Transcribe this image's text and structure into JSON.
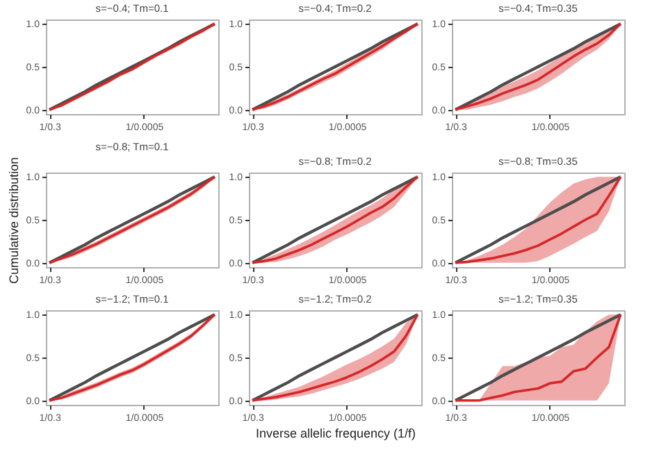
{
  "chart_data": [
    {
      "type": "line",
      "title": "s=−0.4; Tm=0.1",
      "categories": [
        "1/0.3",
        null,
        null,
        null,
        null,
        null,
        null,
        null,
        "1/0.0005",
        null,
        null,
        null,
        null,
        null,
        null
      ],
      "ylim": [
        -0.05,
        1.05
      ],
      "yticks": [
        {
          "value": 0,
          "label": "0.0"
        },
        {
          "value": 0.5,
          "label": "0.5"
        },
        {
          "value": 1,
          "label": "1.0"
        }
      ],
      "series": [
        {
          "color": "#4d4d4d",
          "values": [
            0,
            0.07,
            0.14,
            0.21,
            0.29,
            0.36,
            0.43,
            0.5,
            0.57,
            0.64,
            0.71,
            0.79,
            0.86,
            0.93,
            1
          ]
        },
        {
          "color": "#d62728",
          "values": [
            0,
            0.05,
            0.12,
            0.19,
            0.26,
            0.33,
            0.41,
            0.47,
            0.55,
            0.63,
            0.7,
            0.77,
            0.85,
            0.92,
            1
          ],
          "lower": [
            0,
            0.03,
            0.1,
            0.17,
            0.24,
            0.31,
            0.39,
            0.45,
            0.53,
            0.61,
            0.68,
            0.75,
            0.83,
            0.9,
            1
          ],
          "upper": [
            0,
            0.06,
            0.13,
            0.2,
            0.28,
            0.35,
            0.42,
            0.49,
            0.57,
            0.64,
            0.71,
            0.79,
            0.86,
            0.93,
            1
          ]
        }
      ]
    },
    {
      "type": "line",
      "title": "s=−0.4; Tm=0.2",
      "categories": [
        "1/0.3",
        null,
        null,
        null,
        null,
        null,
        null,
        null,
        "1/0.0005",
        null,
        null,
        null,
        null,
        null,
        null
      ],
      "ylim": [
        -0.05,
        1.05
      ],
      "yticks": [
        {
          "value": 0,
          "label": "0.0"
        },
        {
          "value": 0.5,
          "label": "0.5"
        },
        {
          "value": 1,
          "label": "1.0"
        }
      ],
      "series": [
        {
          "color": "#4d4d4d",
          "values": [
            0,
            0.07,
            0.14,
            0.21,
            0.29,
            0.36,
            0.43,
            0.5,
            0.57,
            0.64,
            0.71,
            0.79,
            0.86,
            0.93,
            1
          ]
        },
        {
          "color": "#d62728",
          "values": [
            0,
            0.04,
            0.09,
            0.15,
            0.22,
            0.29,
            0.36,
            0.42,
            0.5,
            0.58,
            0.66,
            0.74,
            0.83,
            0.91,
            1
          ],
          "lower": [
            0,
            0.01,
            0.06,
            0.12,
            0.19,
            0.25,
            0.32,
            0.38,
            0.46,
            0.54,
            0.62,
            0.7,
            0.8,
            0.89,
            1
          ],
          "upper": [
            0,
            0.07,
            0.12,
            0.18,
            0.25,
            0.32,
            0.39,
            0.46,
            0.54,
            0.62,
            0.69,
            0.77,
            0.86,
            0.93,
            1
          ]
        }
      ]
    },
    {
      "type": "line",
      "title": "s=−0.4; Tm=0.35",
      "categories": [
        "1/0.3",
        null,
        null,
        null,
        null,
        null,
        null,
        null,
        "1/0.0005",
        null,
        null,
        null,
        null,
        null,
        null
      ],
      "ylim": [
        -0.05,
        1.05
      ],
      "yticks": [
        {
          "value": 0,
          "label": "0.0"
        },
        {
          "value": 0.5,
          "label": "0.5"
        },
        {
          "value": 1,
          "label": "1.0"
        }
      ],
      "series": [
        {
          "color": "#4d4d4d",
          "values": [
            0,
            0.07,
            0.14,
            0.21,
            0.29,
            0.36,
            0.43,
            0.5,
            0.57,
            0.64,
            0.71,
            0.79,
            0.86,
            0.93,
            1
          ]
        },
        {
          "color": "#d62728",
          "values": [
            0,
            0.04,
            0.08,
            0.13,
            0.19,
            0.24,
            0.29,
            0.35,
            0.44,
            0.53,
            0.62,
            0.7,
            0.77,
            0.87,
            1
          ],
          "lower": [
            0,
            0,
            0.03,
            0.06,
            0.1,
            0.15,
            0.19,
            0.25,
            0.33,
            0.42,
            0.52,
            0.62,
            0.7,
            0.82,
            1
          ],
          "upper": [
            0,
            0.07,
            0.13,
            0.2,
            0.27,
            0.33,
            0.39,
            0.46,
            0.54,
            0.63,
            0.71,
            0.79,
            0.86,
            0.94,
            1
          ]
        }
      ]
    },
    {
      "type": "line",
      "title": "s=−0.8; Tm=0.1",
      "ylabel": "Cumulative distribution",
      "categories": [
        "1/0.3",
        null,
        null,
        null,
        null,
        null,
        null,
        null,
        "1/0.0005",
        null,
        null,
        null,
        null,
        null,
        null
      ],
      "ylim": [
        -0.05,
        1.05
      ],
      "yticks": [
        {
          "value": 0,
          "label": "0.0"
        },
        {
          "value": 0.5,
          "label": "0.5"
        },
        {
          "value": 1,
          "label": "1.0"
        }
      ],
      "series": [
        {
          "color": "#4d4d4d",
          "values": [
            0,
            0.07,
            0.14,
            0.21,
            0.29,
            0.36,
            0.43,
            0.5,
            0.57,
            0.64,
            0.71,
            0.79,
            0.86,
            0.93,
            1
          ]
        },
        {
          "color": "#d62728",
          "values": [
            0,
            0.05,
            0.1,
            0.16,
            0.22,
            0.29,
            0.36,
            0.43,
            0.5,
            0.57,
            0.64,
            0.72,
            0.8,
            0.9,
            1
          ],
          "lower": [
            0,
            0.03,
            0.07,
            0.13,
            0.19,
            0.26,
            0.33,
            0.4,
            0.47,
            0.54,
            0.61,
            0.69,
            0.77,
            0.87,
            1
          ],
          "upper": [
            0,
            0.07,
            0.13,
            0.19,
            0.25,
            0.32,
            0.39,
            0.46,
            0.53,
            0.6,
            0.67,
            0.75,
            0.83,
            0.92,
            1
          ]
        }
      ]
    },
    {
      "type": "line",
      "title": "s=−0.8; Tm=0.2",
      "categories": [
        "1/0.3",
        null,
        null,
        null,
        null,
        null,
        null,
        null,
        "1/0.0005",
        null,
        null,
        null,
        null,
        null,
        null
      ],
      "ylim": [
        -0.05,
        1.05
      ],
      "yticks": [
        {
          "value": 0,
          "label": "0.0"
        },
        {
          "value": 0.5,
          "label": "0.5"
        },
        {
          "value": 1,
          "label": "1.0"
        }
      ],
      "series": [
        {
          "color": "#4d4d4d",
          "values": [
            0,
            0.07,
            0.14,
            0.21,
            0.29,
            0.36,
            0.43,
            0.5,
            0.57,
            0.64,
            0.71,
            0.79,
            0.86,
            0.93,
            1
          ]
        },
        {
          "color": "#d62728",
          "values": [
            0,
            0.02,
            0.05,
            0.1,
            0.15,
            0.21,
            0.28,
            0.35,
            0.42,
            0.5,
            0.58,
            0.65,
            0.75,
            0.88,
            1
          ],
          "lower": [
            0,
            0,
            0.01,
            0.04,
            0.08,
            0.13,
            0.19,
            0.27,
            0.33,
            0.4,
            0.47,
            0.55,
            0.65,
            0.82,
            1
          ],
          "upper": [
            0,
            0.05,
            0.1,
            0.16,
            0.22,
            0.29,
            0.36,
            0.44,
            0.52,
            0.6,
            0.67,
            0.75,
            0.85,
            0.95,
            1
          ]
        }
      ]
    },
    {
      "type": "line",
      "title": "s=−0.8; Tm=0.35",
      "categories": [
        "1/0.3",
        null,
        null,
        null,
        null,
        null,
        null,
        null,
        "1/0.0005",
        null,
        null,
        null,
        null,
        null,
        null
      ],
      "ylim": [
        -0.05,
        1.05
      ],
      "yticks": [
        {
          "value": 0,
          "label": "0.0"
        },
        {
          "value": 0.5,
          "label": "0.5"
        },
        {
          "value": 1,
          "label": "1.0"
        }
      ],
      "series": [
        {
          "color": "#4d4d4d",
          "values": [
            0,
            0.07,
            0.14,
            0.21,
            0.29,
            0.36,
            0.43,
            0.5,
            0.57,
            0.64,
            0.71,
            0.79,
            0.86,
            0.93,
            1
          ]
        },
        {
          "color": "#d62728",
          "values": [
            0,
            0.01,
            0.03,
            0.05,
            0.08,
            0.11,
            0.15,
            0.2,
            0.27,
            0.34,
            0.42,
            0.5,
            0.57,
            0.78,
            1
          ],
          "lower": [
            0,
            0,
            0,
            0,
            0,
            0,
            0,
            0.02,
            0.08,
            0.15,
            0.22,
            0.3,
            0.37,
            0.6,
            1
          ],
          "upper": [
            0,
            0.03,
            0.08,
            0.14,
            0.21,
            0.3,
            0.4,
            0.55,
            0.7,
            0.82,
            0.92,
            0.97,
            1,
            1,
            1
          ]
        }
      ]
    },
    {
      "type": "line",
      "title": "s=−1.2; Tm=0.1",
      "categories": [
        "1/0.3",
        null,
        null,
        null,
        null,
        null,
        null,
        null,
        "1/0.0005",
        null,
        null,
        null,
        null,
        null,
        null
      ],
      "ylim": [
        -0.05,
        1.05
      ],
      "yticks": [
        {
          "value": 0,
          "label": "0.0"
        },
        {
          "value": 0.5,
          "label": "0.5"
        },
        {
          "value": 1,
          "label": "1.0"
        }
      ],
      "series": [
        {
          "color": "#4d4d4d",
          "values": [
            0,
            0.07,
            0.14,
            0.21,
            0.29,
            0.36,
            0.43,
            0.5,
            0.57,
            0.64,
            0.71,
            0.79,
            0.86,
            0.93,
            1
          ]
        },
        {
          "color": "#d62728",
          "values": [
            0,
            0.03,
            0.08,
            0.13,
            0.18,
            0.24,
            0.3,
            0.35,
            0.42,
            0.5,
            0.58,
            0.66,
            0.75,
            0.87,
            1
          ],
          "lower": [
            0,
            0.01,
            0.05,
            0.1,
            0.15,
            0.21,
            0.27,
            0.32,
            0.39,
            0.47,
            0.55,
            0.63,
            0.72,
            0.85,
            1
          ],
          "upper": [
            0,
            0.05,
            0.11,
            0.16,
            0.21,
            0.27,
            0.33,
            0.38,
            0.45,
            0.53,
            0.61,
            0.69,
            0.78,
            0.9,
            1
          ]
        }
      ]
    },
    {
      "type": "line",
      "title": "s=−1.2; Tm=0.2",
      "xlabel": "Inverse allelic frequency (1/f)",
      "categories": [
        "1/0.3",
        null,
        null,
        null,
        null,
        null,
        null,
        null,
        "1/0.0005",
        null,
        null,
        null,
        null,
        null,
        null
      ],
      "ylim": [
        -0.05,
        1.05
      ],
      "yticks": [
        {
          "value": 0,
          "label": "0.0"
        },
        {
          "value": 0.5,
          "label": "0.5"
        },
        {
          "value": 1,
          "label": "1.0"
        }
      ],
      "series": [
        {
          "color": "#4d4d4d",
          "values": [
            0,
            0.07,
            0.14,
            0.21,
            0.29,
            0.36,
            0.43,
            0.5,
            0.57,
            0.64,
            0.71,
            0.79,
            0.86,
            0.93,
            1
          ]
        },
        {
          "color": "#d62728",
          "values": [
            0,
            0.02,
            0.04,
            0.07,
            0.1,
            0.14,
            0.18,
            0.22,
            0.27,
            0.33,
            0.4,
            0.48,
            0.57,
            0.75,
            1
          ],
          "lower": [
            0,
            0,
            0.01,
            0.03,
            0.05,
            0.08,
            0.12,
            0.16,
            0.2,
            0.25,
            0.31,
            0.37,
            0.45,
            0.65,
            1
          ],
          "upper": [
            0,
            0.04,
            0.08,
            0.12,
            0.16,
            0.22,
            0.28,
            0.35,
            0.42,
            0.48,
            0.55,
            0.63,
            0.72,
            0.9,
            1
          ]
        }
      ]
    },
    {
      "type": "line",
      "title": "s=−1.2; Tm=0.35",
      "categories": [
        "1/0.3",
        null,
        null,
        null,
        null,
        null,
        null,
        null,
        "1/0.0005",
        null,
        null,
        null,
        null,
        null,
        null
      ],
      "ylim": [
        -0.05,
        1.05
      ],
      "yticks": [
        {
          "value": 0,
          "label": "0.0"
        },
        {
          "value": 0.5,
          "label": "0.5"
        },
        {
          "value": 1,
          "label": "1.0"
        }
      ],
      "series": [
        {
          "color": "#4d4d4d",
          "values": [
            0,
            0.07,
            0.14,
            0.21,
            0.29,
            0.36,
            0.43,
            0.5,
            0.57,
            0.64,
            0.71,
            0.79,
            0.86,
            0.93,
            1
          ]
        },
        {
          "color": "#d62728",
          "values": [
            0,
            0,
            0,
            0.03,
            0.06,
            0.1,
            0.12,
            0.14,
            0.2,
            0.22,
            0.34,
            0.37,
            0.5,
            0.62,
            1
          ],
          "lower": [
            0,
            0,
            0,
            0,
            0,
            0,
            0,
            0,
            0,
            0,
            0,
            0,
            0,
            0.2,
            1
          ],
          "upper": [
            0,
            0,
            0,
            0.2,
            0.4,
            0.4,
            0.45,
            0.5,
            0.52,
            0.62,
            0.65,
            0.8,
            0.92,
            1,
            1
          ]
        }
      ]
    }
  ]
}
